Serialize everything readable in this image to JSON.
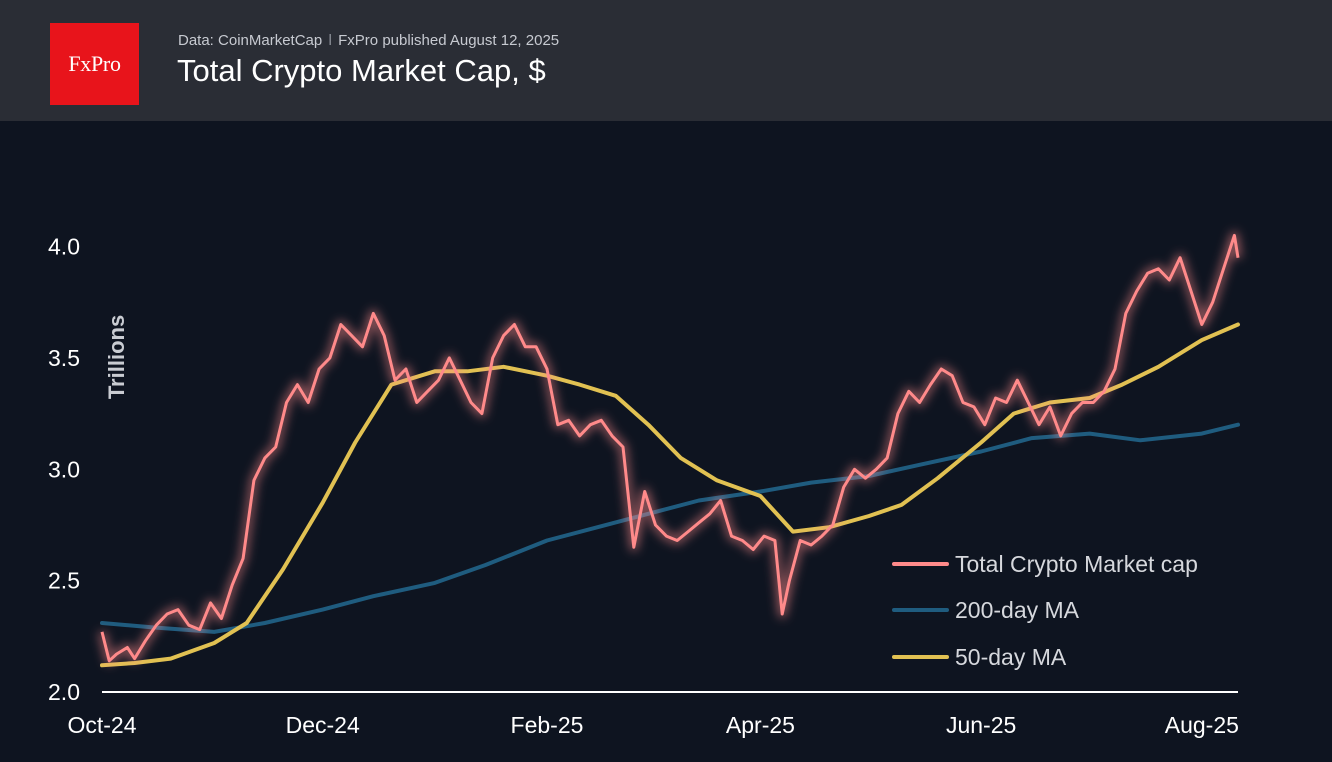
{
  "header": {
    "logo_text": "FxPro",
    "source_data": "Data: CoinMarketCap",
    "source_separator": "ǀ",
    "source_publisher": "FxPro published August 12, 2025",
    "title": "Total Crypto Market Cap, $"
  },
  "colors": {
    "header_bg": "#2a2d35",
    "chart_bg": "#0e1420",
    "logo_bg": "#e8141b",
    "total_line": "#ff8a8a",
    "ma200_line": "#1f5c7f",
    "ma50_line": "#e1c152"
  },
  "chart_data": {
    "type": "line",
    "ylabel": "Trillions",
    "ylim": [
      2.0,
      4.2
    ],
    "yticks": [
      "2.0",
      "2.5",
      "3.0",
      "3.5",
      "4.0"
    ],
    "xlabels": [
      "Oct-24",
      "Dec-24",
      "Feb-25",
      "Apr-25",
      "Jun-25",
      "Aug-25"
    ],
    "xlabel_dates": [
      "2024-10-01",
      "2024-12-01",
      "2025-02-01",
      "2025-04-01",
      "2025-06-01",
      "2025-08-01"
    ],
    "xlim": [
      "2024-10-01",
      "2025-08-11"
    ],
    "legend_position": "bottom-right",
    "grid": false,
    "series": [
      {
        "name": "Total Crypto Market cap",
        "color": "#ff8a8a",
        "x": [
          "2024-10-01",
          "2024-10-03",
          "2024-10-05",
          "2024-10-08",
          "2024-10-10",
          "2024-10-13",
          "2024-10-16",
          "2024-10-19",
          "2024-10-22",
          "2024-10-25",
          "2024-10-28",
          "2024-10-31",
          "2024-11-03",
          "2024-11-06",
          "2024-11-09",
          "2024-11-12",
          "2024-11-15",
          "2024-11-18",
          "2024-11-21",
          "2024-11-24",
          "2024-11-27",
          "2024-11-30",
          "2024-12-03",
          "2024-12-06",
          "2024-12-09",
          "2024-12-12",
          "2024-12-15",
          "2024-12-18",
          "2024-12-21",
          "2024-12-24",
          "2024-12-27",
          "2024-12-30",
          "2025-01-02",
          "2025-01-05",
          "2025-01-08",
          "2025-01-11",
          "2025-01-14",
          "2025-01-17",
          "2025-01-20",
          "2025-01-23",
          "2025-01-26",
          "2025-01-29",
          "2025-02-01",
          "2025-02-04",
          "2025-02-07",
          "2025-02-10",
          "2025-02-13",
          "2025-02-16",
          "2025-02-19",
          "2025-02-22",
          "2025-02-25",
          "2025-02-28",
          "2025-03-03",
          "2025-03-06",
          "2025-03-09",
          "2025-03-12",
          "2025-03-15",
          "2025-03-18",
          "2025-03-21",
          "2025-03-24",
          "2025-03-27",
          "2025-03-30",
          "2025-04-02",
          "2025-04-05",
          "2025-04-07",
          "2025-04-09",
          "2025-04-12",
          "2025-04-15",
          "2025-04-18",
          "2025-04-21",
          "2025-04-24",
          "2025-04-27",
          "2025-04-30",
          "2025-05-03",
          "2025-05-06",
          "2025-05-09",
          "2025-05-12",
          "2025-05-15",
          "2025-05-18",
          "2025-05-21",
          "2025-05-24",
          "2025-05-27",
          "2025-05-30",
          "2025-06-02",
          "2025-06-05",
          "2025-06-08",
          "2025-06-11",
          "2025-06-14",
          "2025-06-17",
          "2025-06-20",
          "2025-06-23",
          "2025-06-26",
          "2025-06-29",
          "2025-07-02",
          "2025-07-05",
          "2025-07-08",
          "2025-07-11",
          "2025-07-14",
          "2025-07-17",
          "2025-07-20",
          "2025-07-23",
          "2025-07-26",
          "2025-07-29",
          "2025-08-01",
          "2025-08-04",
          "2025-08-07",
          "2025-08-10",
          "2025-08-11"
        ],
        "y": [
          2.27,
          2.14,
          2.17,
          2.2,
          2.15,
          2.23,
          2.3,
          2.35,
          2.37,
          2.3,
          2.28,
          2.4,
          2.33,
          2.48,
          2.6,
          2.95,
          3.05,
          3.1,
          3.3,
          3.38,
          3.3,
          3.45,
          3.5,
          3.65,
          3.6,
          3.55,
          3.7,
          3.6,
          3.4,
          3.45,
          3.3,
          3.35,
          3.4,
          3.5,
          3.4,
          3.3,
          3.25,
          3.5,
          3.6,
          3.65,
          3.55,
          3.55,
          3.45,
          3.2,
          3.22,
          3.15,
          3.2,
          3.22,
          3.15,
          3.1,
          2.65,
          2.9,
          2.75,
          2.7,
          2.68,
          2.72,
          2.76,
          2.8,
          2.86,
          2.7,
          2.68,
          2.64,
          2.7,
          2.68,
          2.35,
          2.5,
          2.68,
          2.66,
          2.7,
          2.75,
          2.92,
          3.0,
          2.96,
          3.0,
          3.05,
          3.25,
          3.35,
          3.3,
          3.38,
          3.45,
          3.42,
          3.3,
          3.28,
          3.2,
          3.32,
          3.3,
          3.4,
          3.3,
          3.2,
          3.28,
          3.15,
          3.25,
          3.3,
          3.3,
          3.35,
          3.45,
          3.7,
          3.8,
          3.88,
          3.9,
          3.85,
          3.95,
          3.8,
          3.65,
          3.75,
          3.9,
          4.05,
          3.95
        ]
      },
      {
        "name": "200-day MA",
        "color": "#1f5c7f",
        "x": [
          "2024-10-01",
          "2024-10-15",
          "2024-11-01",
          "2024-11-15",
          "2024-12-01",
          "2024-12-15",
          "2025-01-01",
          "2025-01-15",
          "2025-02-01",
          "2025-02-15",
          "2025-03-01",
          "2025-03-15",
          "2025-04-01",
          "2025-04-15",
          "2025-05-01",
          "2025-05-15",
          "2025-06-01",
          "2025-06-15",
          "2025-07-01",
          "2025-07-15",
          "2025-08-01",
          "2025-08-11"
        ],
        "y": [
          2.31,
          2.29,
          2.27,
          2.31,
          2.37,
          2.43,
          2.49,
          2.57,
          2.68,
          2.74,
          2.8,
          2.86,
          2.9,
          2.94,
          2.97,
          3.02,
          3.08,
          3.14,
          3.16,
          3.13,
          3.16,
          3.2
        ]
      },
      {
        "name": "50-day MA",
        "color": "#e1c152",
        "x": [
          "2024-10-01",
          "2024-10-10",
          "2024-10-20",
          "2024-11-01",
          "2024-11-10",
          "2024-11-20",
          "2024-12-01",
          "2024-12-10",
          "2024-12-20",
          "2025-01-01",
          "2025-01-10",
          "2025-01-20",
          "2025-02-01",
          "2025-02-10",
          "2025-02-20",
          "2025-03-01",
          "2025-03-10",
          "2025-03-20",
          "2025-04-01",
          "2025-04-10",
          "2025-04-20",
          "2025-05-01",
          "2025-05-10",
          "2025-05-20",
          "2025-06-01",
          "2025-06-10",
          "2025-06-20",
          "2025-07-01",
          "2025-07-10",
          "2025-07-20",
          "2025-08-01",
          "2025-08-11"
        ],
        "y": [
          2.12,
          2.13,
          2.15,
          2.22,
          2.31,
          2.55,
          2.85,
          3.12,
          3.38,
          3.44,
          3.44,
          3.46,
          3.42,
          3.38,
          3.33,
          3.2,
          3.05,
          2.95,
          2.88,
          2.72,
          2.74,
          2.79,
          2.84,
          2.96,
          3.12,
          3.25,
          3.3,
          3.32,
          3.38,
          3.46,
          3.58,
          3.65
        ]
      }
    ]
  }
}
